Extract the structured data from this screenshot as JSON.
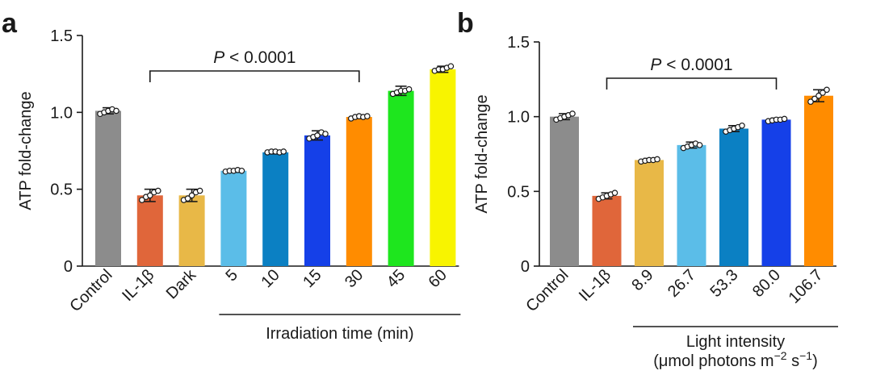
{
  "chart_data": [
    {
      "panel": "a",
      "type": "bar",
      "ylabel": "ATP fold-change",
      "ylim": [
        0,
        1.5
      ],
      "yticks": [
        0,
        0.5,
        1.0,
        1.5
      ],
      "ytick_labels": [
        "0",
        "0.5",
        "1.0",
        "1.5"
      ],
      "categories": [
        "Control",
        "IL-1β",
        "Dark",
        "5",
        "10",
        "15",
        "30",
        "45",
        "60"
      ],
      "values": [
        1.01,
        0.46,
        0.46,
        0.62,
        0.74,
        0.85,
        0.97,
        1.14,
        1.28
      ],
      "errors": [
        0.02,
        0.04,
        0.04,
        0.01,
        0.01,
        0.03,
        0.01,
        0.03,
        0.02
      ],
      "points": [
        [
          0.99,
          1.0,
          1.01,
          1.02,
          1.01
        ],
        [
          0.43,
          0.45,
          0.46,
          0.48,
          0.49
        ],
        [
          0.43,
          0.44,
          0.46,
          0.48,
          0.49
        ],
        [
          0.615,
          0.62,
          0.62,
          0.625,
          0.62
        ],
        [
          0.74,
          0.745,
          0.745,
          0.74,
          0.745
        ],
        [
          0.83,
          0.84,
          0.85,
          0.87,
          0.86
        ],
        [
          0.96,
          0.97,
          0.975,
          0.97,
          0.975
        ],
        [
          1.12,
          1.13,
          1.14,
          1.14,
          1.15
        ],
        [
          1.27,
          1.28,
          1.28,
          1.29,
          1.3
        ]
      ],
      "colors": [
        "#8c8c8c",
        "#e0663a",
        "#e8b847",
        "#5bbde8",
        "#0b80c3",
        "#1540e8",
        "#ff8c00",
        "#1ee61e",
        "#f8f400"
      ],
      "annotation": {
        "text_prefix": "P",
        "text": " < 0.0001",
        "from_index": 1,
        "to_index": 6
      },
      "group": {
        "label": "Irradiation time (min)",
        "from_index": 3,
        "to_index": 8
      }
    },
    {
      "panel": "b",
      "type": "bar",
      "ylabel": "ATP fold-change",
      "ylim": [
        0,
        1.5
      ],
      "yticks": [
        0,
        0.5,
        1.0,
        1.5
      ],
      "ytick_labels": [
        "0",
        "0.5",
        "1.0",
        "1.5"
      ],
      "categories": [
        "Control",
        "IL-1β",
        "8.9",
        "26.7",
        "53.3",
        "80.0",
        "106.7"
      ],
      "values": [
        1.0,
        0.47,
        0.71,
        0.81,
        0.92,
        0.98,
        1.14
      ],
      "errors": [
        0.02,
        0.02,
        0.01,
        0.02,
        0.02,
        0.01,
        0.04
      ],
      "points": [
        [
          0.98,
          0.99,
          1.0,
          1.01,
          1.02
        ],
        [
          0.45,
          0.46,
          0.47,
          0.48,
          0.49
        ],
        [
          0.7,
          0.705,
          0.71,
          0.71,
          0.715
        ],
        [
          0.79,
          0.8,
          0.81,
          0.82,
          0.81
        ],
        [
          0.9,
          0.91,
          0.92,
          0.93,
          0.94
        ],
        [
          0.97,
          0.975,
          0.98,
          0.98,
          0.985
        ],
        [
          1.1,
          1.12,
          1.14,
          1.16,
          1.18
        ]
      ],
      "colors": [
        "#8c8c8c",
        "#e0663a",
        "#e8b847",
        "#5bbde8",
        "#0b80c3",
        "#1540e8",
        "#ff8c00"
      ],
      "annotation": {
        "text_prefix": "P",
        "text": " < 0.0001",
        "from_index": 1,
        "to_index": 5
      },
      "group": {
        "label_line1": "Light intensity",
        "label_line2": "(μmol photons m",
        "label_line2_sup1": "−2",
        "label_line2_mid": " s",
        "label_line2_sup2": "−1",
        "label_line2_end": ")",
        "from_index": 2,
        "to_index": 6
      }
    }
  ]
}
